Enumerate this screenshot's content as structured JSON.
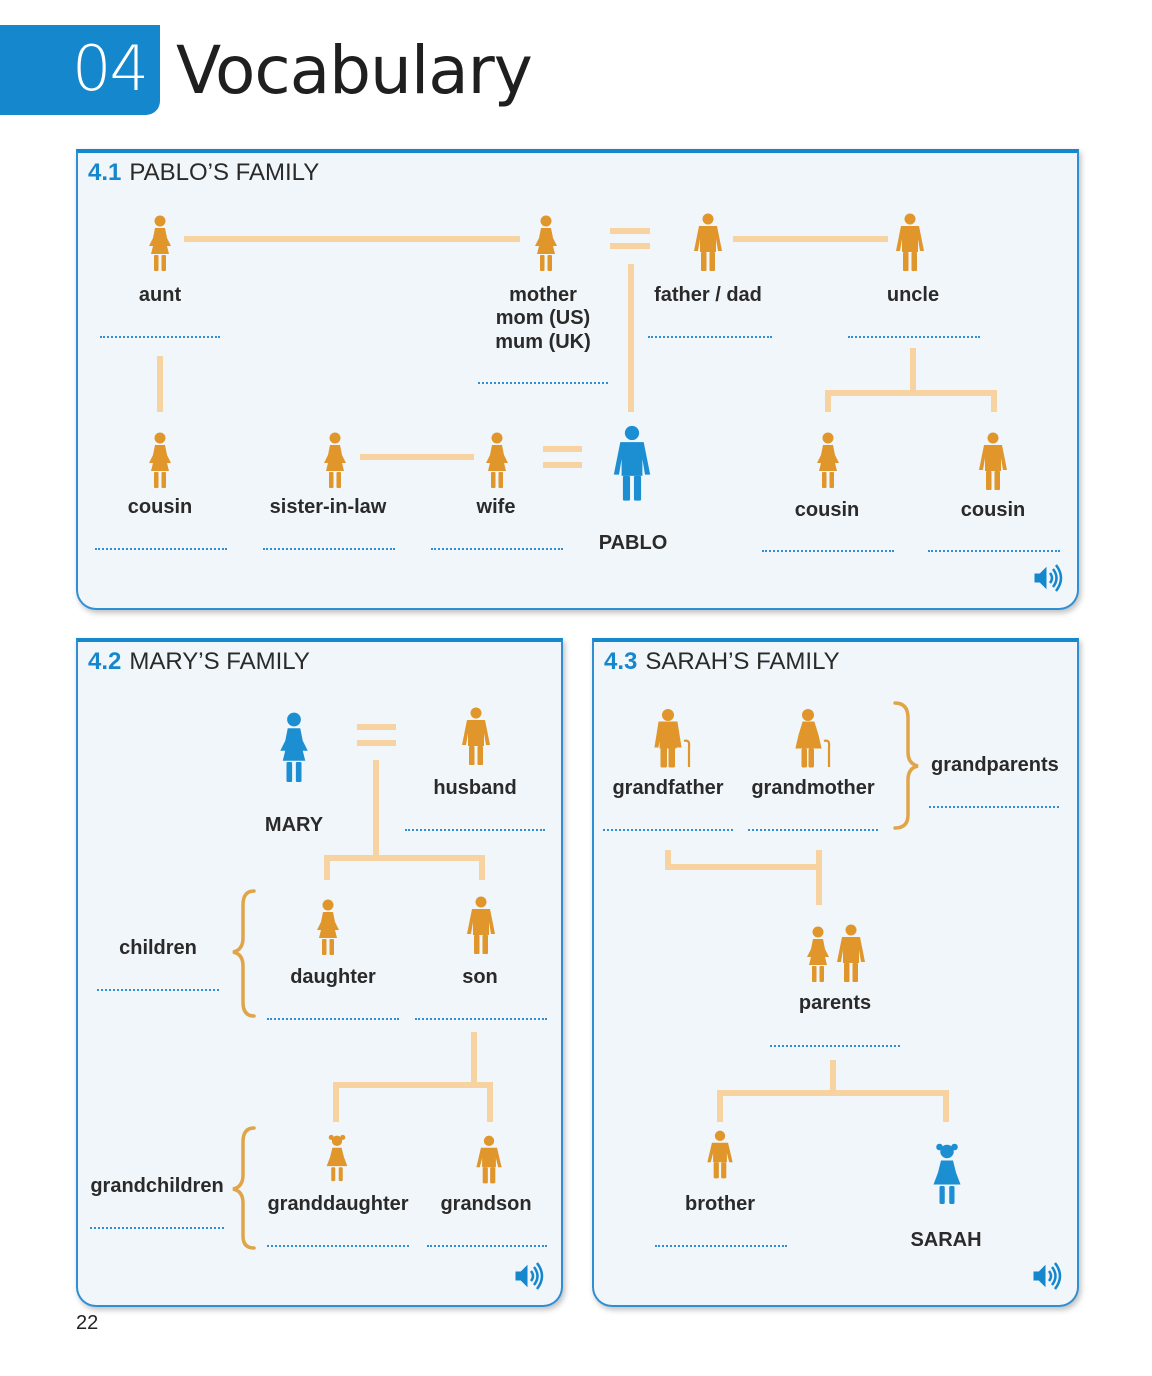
{
  "header": {
    "chapter_number": "04",
    "chapter_title": "Vocabulary"
  },
  "colors": {
    "accent": "#1487cd",
    "figure": "#e0962a",
    "highlight_figure": "#1c8fd2",
    "connector": "#f6d3a0"
  },
  "sections": {
    "pablo": {
      "number": "4.1",
      "title": "PABLO’S FAMILY",
      "labels": {
        "aunt": "aunt",
        "mother": "mother",
        "mom_us": "mom (US)",
        "mum_uk": "mum (UK)",
        "father": "father / dad",
        "uncle": "uncle",
        "cousin_1": "cousin",
        "sister_in_law": "sister-in-law",
        "wife": "wife",
        "pablo": "PABLO",
        "cousin_2": "cousin",
        "cousin_3": "cousin"
      },
      "icons": [
        "woman-icon",
        "man-icon",
        "equals-icon",
        "speaker-icon"
      ]
    },
    "mary": {
      "number": "4.2",
      "title": "MARY’S FAMILY",
      "labels": {
        "mary": "MARY",
        "husband": "husband",
        "children": "children",
        "daughter": "daughter",
        "son": "son",
        "grandchildren": "grandchildren",
        "granddaughter": "granddaughter",
        "grandson": "grandson"
      },
      "icons": [
        "woman-icon",
        "man-icon",
        "girl-icon",
        "boy-icon",
        "brace-icon",
        "speaker-icon"
      ]
    },
    "sarah": {
      "number": "4.3",
      "title": "SARAH’S FAMILY",
      "labels": {
        "grandfather": "grandfather",
        "grandmother": "grandmother",
        "grandparents": "grandparents",
        "parents": "parents",
        "brother": "brother",
        "sarah": "SARAH"
      },
      "icons": [
        "grandfather-icon",
        "grandmother-icon",
        "brace-icon",
        "boy-icon",
        "girl-icon",
        "speaker-icon"
      ]
    }
  },
  "footer": {
    "page_number": "22"
  }
}
